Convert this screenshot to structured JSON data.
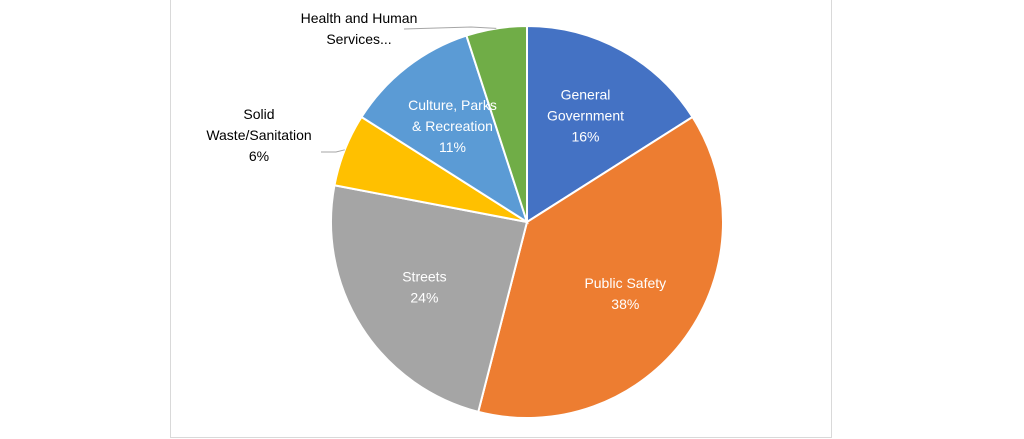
{
  "chart_data": {
    "type": "pie",
    "slices": [
      {
        "name": "General Government",
        "value": 16,
        "pct_text": "16%",
        "label_lines": [
          "General",
          "Government",
          "16%"
        ],
        "color": "#4472C4",
        "label_color": "#ffffff",
        "label_inside": true
      },
      {
        "name": "Public Safety",
        "value": 38,
        "pct_text": "38%",
        "label_lines": [
          "Public Safety",
          "38%"
        ],
        "color": "#ED7D31",
        "label_color": "#ffffff",
        "label_inside": true
      },
      {
        "name": "Streets",
        "value": 24,
        "pct_text": "24%",
        "label_lines": [
          "Streets",
          "24%"
        ],
        "color": "#A5A5A5",
        "label_color": "#ffffff",
        "label_inside": true
      },
      {
        "name": "Solid Waste/Sanitation",
        "value": 6,
        "pct_text": "6%",
        "label_lines": [
          "Solid",
          "Waste/Sanitation",
          "6%"
        ],
        "color": "#FFC000",
        "label_color": "#000000",
        "label_inside": false
      },
      {
        "name": "Culture, Parks & Recreation",
        "value": 11,
        "pct_text": "11%",
        "label_lines": [
          "Culture, Parks",
          "& Recreation",
          "11%"
        ],
        "color": "#5B9BD5",
        "label_color": "#ffffff",
        "label_inside": true
      },
      {
        "name": "Health and Human Services",
        "value": 5,
        "pct_text": "",
        "label_lines": [
          "Health and Human",
          "Services..."
        ],
        "color": "#70AD47",
        "label_color": "#000000",
        "label_inside": false
      }
    ],
    "start": "12 o'clock, clockwise",
    "legend": "none"
  }
}
